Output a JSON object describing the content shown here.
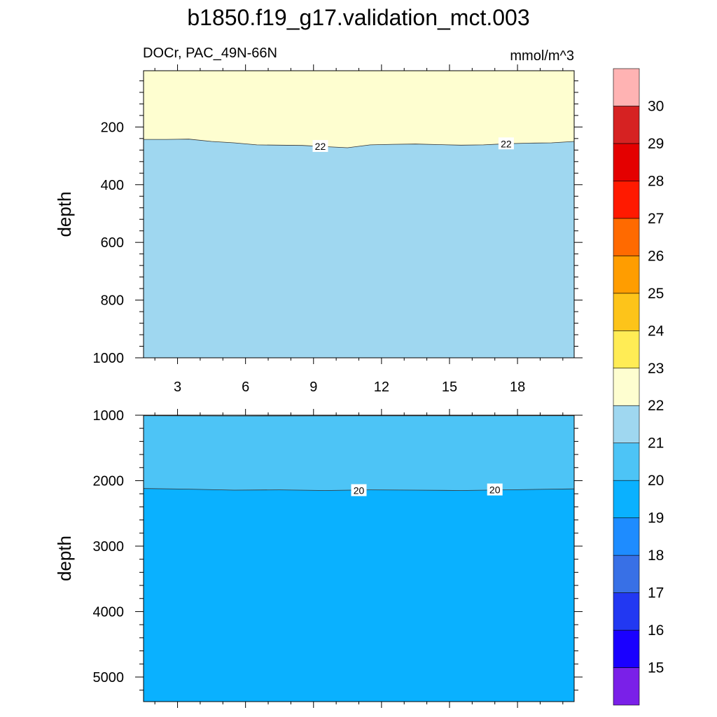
{
  "title": "b1850.f19_g17.validation_mct.003",
  "left_subtitle": "DOCr, PAC_49N-66N",
  "right_subtitle": "mmol/m^3",
  "colorbar": {
    "levels": [
      15,
      16,
      17,
      18,
      19,
      20,
      21,
      22,
      23,
      24,
      25,
      26,
      27,
      28,
      29,
      30
    ],
    "labels": [
      "15",
      "16",
      "17",
      "18",
      "19",
      "20",
      "21",
      "22",
      "23",
      "24",
      "25",
      "26",
      "27",
      "28",
      "29",
      "30"
    ],
    "colors": [
      "#7a20e8",
      "#1a00ff",
      "#2238f2",
      "#3870e6",
      "#1e8cff",
      "#0ab1ff",
      "#4dc4f6",
      "#9fd7f0",
      "#fefed0",
      "#ffec55",
      "#fdc41a",
      "#ff9d00",
      "#ff6a00",
      "#ff1a00",
      "#e40000",
      "#d62222",
      "#ffb3b3"
    ]
  },
  "chart_data": [
    {
      "type": "contour",
      "panel": "upper",
      "xlabel": "",
      "ylabel": "depth",
      "xlim": [
        1.5,
        20.5
      ],
      "ylim": [
        1000,
        5
      ],
      "xticks": [
        3,
        6,
        9,
        12,
        15,
        18
      ],
      "xtick_labels": [
        "3",
        "6",
        "9",
        "12",
        "15",
        "18"
      ],
      "yticks": [
        200,
        400,
        600,
        800,
        1000
      ],
      "ytick_labels": [
        "200",
        "400",
        "600",
        "800",
        "1000"
      ],
      "regions": [
        {
          "range": "22-23",
          "color": "#fefed0",
          "description": "above 22 contour"
        },
        {
          "range": "21-22",
          "color": "#9fd7f0",
          "description": "below 22 contour"
        }
      ],
      "contours": [
        {
          "level": 22,
          "x": [
            1.5,
            2.5,
            3.5,
            4.5,
            5.5,
            6.5,
            7.5,
            8.5,
            9.5,
            10.5,
            11.5,
            12.5,
            13.5,
            14.5,
            15.5,
            16.5,
            17.5,
            18.5,
            19.5,
            20.5
          ],
          "depth": [
            243,
            243,
            242,
            250,
            255,
            262,
            263,
            264,
            268,
            272,
            262,
            260,
            259,
            261,
            263,
            262,
            258,
            256,
            255,
            250
          ],
          "labels": [
            {
              "text": "22",
              "x": 9.3,
              "depth": 267
            },
            {
              "text": "22",
              "x": 17.5,
              "depth": 258
            }
          ]
        }
      ]
    },
    {
      "type": "contour",
      "panel": "lower",
      "xlabel": "",
      "ylabel": "depth",
      "xlim": [
        1.5,
        20.5
      ],
      "ylim": [
        5375,
        1000
      ],
      "yticks": [
        1000,
        2000,
        3000,
        4000,
        5000
      ],
      "ytick_labels": [
        "1000",
        "2000",
        "3000",
        "4000",
        "5000"
      ],
      "regions": [
        {
          "range": "21-22",
          "color": "#9fd7f0",
          "description": "thin band at 1000"
        },
        {
          "range": "20-21",
          "color": "#4dc4f6",
          "description": "above 20 contour"
        },
        {
          "range": "19-20",
          "color": "#0ab1ff",
          "description": "below 20 contour"
        }
      ],
      "contours": [
        {
          "level": 21,
          "x": [
            1.5,
            5.5,
            10.5,
            15.5,
            20.5
          ],
          "depth": [
            1008,
            1012,
            1010,
            1010,
            1008
          ]
        },
        {
          "level": 20,
          "x": [
            1.5,
            3.5,
            5.5,
            7.5,
            9.5,
            11.5,
            13.5,
            15.5,
            17.5,
            19.5,
            20.5
          ],
          "depth": [
            2120,
            2130,
            2145,
            2140,
            2150,
            2140,
            2145,
            2150,
            2140,
            2130,
            2125
          ],
          "labels": [
            {
              "text": "20",
              "x": 11.0,
              "depth": 2150
            },
            {
              "text": "20",
              "x": 17.0,
              "depth": 2140
            }
          ]
        }
      ]
    }
  ]
}
